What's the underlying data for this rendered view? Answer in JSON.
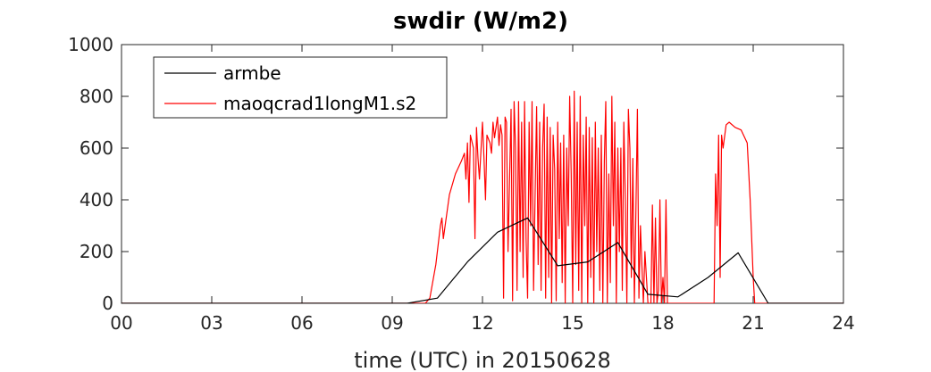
{
  "chart_data": {
    "type": "line",
    "title": "swdir  (W/m2)",
    "xlabel": "time (UTC) in 20150628",
    "ylabel": "",
    "xlim": [
      0,
      24
    ],
    "ylim": [
      0,
      1000
    ],
    "xticks": [
      0,
      3,
      6,
      9,
      12,
      15,
      18,
      21,
      24
    ],
    "xtick_labels": [
      "00",
      "03",
      "06",
      "09",
      "12",
      "15",
      "18",
      "21",
      "24"
    ],
    "yticks": [
      0,
      200,
      400,
      600,
      800,
      1000
    ],
    "ytick_labels": [
      "0",
      "200",
      "400",
      "600",
      "800",
      "1000"
    ],
    "grid": false,
    "legend_position": "top-left",
    "series": [
      {
        "name": "armbe",
        "color": "#000000",
        "x": [
          0,
          9.5,
          10.5,
          11.5,
          12.5,
          13.5,
          14.5,
          15.5,
          16.5,
          17.5,
          18.5,
          19.5,
          20.5,
          21.5,
          24
        ],
        "y": [
          0,
          0,
          20,
          160,
          275,
          330,
          145,
          160,
          235,
          35,
          25,
          100,
          195,
          0,
          0
        ]
      },
      {
        "name": "maoqcrad1longM1.s2",
        "color": "#ff0000",
        "x": [
          0,
          10.1,
          10.25,
          10.45,
          10.6,
          10.65,
          10.7,
          10.9,
          11.1,
          11.3,
          11.4,
          11.45,
          11.5,
          11.55,
          11.6,
          11.7,
          11.75,
          11.8,
          11.85,
          11.9,
          12.0,
          12.05,
          12.1,
          12.15,
          12.25,
          12.3,
          12.35,
          12.4,
          12.5,
          12.55,
          12.6,
          12.65,
          12.7,
          12.75,
          12.8,
          12.85,
          12.95,
          13.0,
          13.05,
          13.1,
          13.15,
          13.2,
          13.25,
          13.3,
          13.35,
          13.4,
          13.45,
          13.5,
          13.55,
          13.6,
          13.65,
          13.7,
          13.75,
          13.8,
          13.85,
          13.9,
          13.95,
          14.0,
          14.05,
          14.1,
          14.15,
          14.2,
          14.25,
          14.3,
          14.35,
          14.4,
          14.45,
          14.5,
          14.55,
          14.6,
          14.65,
          14.7,
          14.75,
          14.8,
          14.85,
          14.9,
          14.95,
          15.0,
          15.05,
          15.1,
          15.15,
          15.2,
          15.25,
          15.3,
          15.35,
          15.4,
          15.45,
          15.5,
          15.55,
          15.6,
          15.65,
          15.7,
          15.75,
          15.8,
          15.85,
          15.9,
          15.95,
          16.0,
          16.05,
          16.1,
          16.15,
          16.2,
          16.25,
          16.3,
          16.35,
          16.4,
          16.45,
          16.5,
          16.55,
          16.6,
          16.65,
          16.7,
          16.75,
          16.8,
          16.85,
          16.9,
          16.95,
          17.0,
          17.05,
          17.1,
          17.15,
          17.2,
          17.25,
          17.3,
          17.35,
          17.4,
          17.5,
          17.6,
          17.65,
          17.7,
          17.75,
          17.8,
          17.85,
          17.9,
          17.95,
          18.0,
          18.05,
          18.1,
          18.15,
          18.2,
          19.7,
          19.75,
          19.8,
          19.85,
          19.9,
          19.95,
          20.0,
          20.1,
          20.2,
          20.4,
          20.6,
          20.8,
          20.9,
          21.0,
          21.05,
          21.1,
          24
        ],
        "y": [
          0,
          0,
          20,
          150,
          300,
          330,
          250,
          420,
          500,
          550,
          580,
          480,
          620,
          390,
          650,
          600,
          250,
          680,
          560,
          480,
          700,
          560,
          400,
          650,
          620,
          580,
          700,
          640,
          720,
          610,
          690,
          650,
          20,
          720,
          700,
          200,
          750,
          10,
          780,
          600,
          50,
          780,
          200,
          700,
          100,
          780,
          250,
          20,
          700,
          300,
          780,
          50,
          420,
          760,
          150,
          700,
          50,
          600,
          770,
          20,
          720,
          100,
          680,
          0,
          650,
          520,
          10,
          700,
          250,
          620,
          80,
          650,
          0,
          600,
          300,
          800,
          500,
          0,
          820,
          150,
          700,
          50,
          800,
          0,
          650,
          300,
          720,
          0,
          680,
          100,
          640,
          0,
          700,
          200,
          600,
          50,
          650,
          0,
          550,
          780,
          0,
          500,
          80,
          800,
          300,
          700,
          0,
          600,
          200,
          600,
          50,
          700,
          400,
          0,
          750,
          600,
          100,
          560,
          0,
          350,
          750,
          20,
          300,
          150,
          0,
          200,
          0,
          0,
          380,
          0,
          330,
          0,
          50,
          400,
          0,
          100,
          0,
          400,
          0,
          0,
          0,
          500,
          300,
          650,
          100,
          650,
          600,
          690,
          700,
          680,
          670,
          620,
          400,
          100,
          0,
          0,
          0
        ]
      }
    ]
  }
}
